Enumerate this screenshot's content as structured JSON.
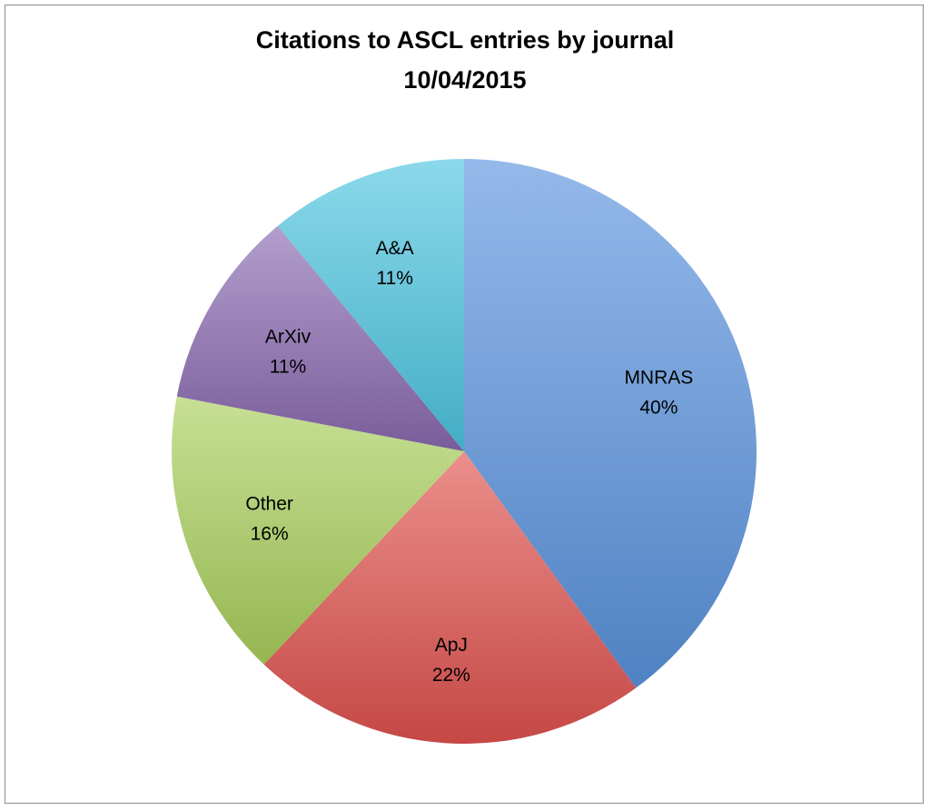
{
  "chart_data": {
    "type": "pie",
    "title": "Citations to ASCL entries by journal",
    "subtitle": "10/04/2015",
    "slices": [
      {
        "name": "MNRAS",
        "value": 40,
        "label": "40%",
        "color": "#5a94de"
      },
      {
        "name": "ApJ",
        "value": 22,
        "label": "22%",
        "color": "#e0524e"
      },
      {
        "name": "Other",
        "value": 16,
        "label": "16%",
        "color": "#a9cf5c"
      },
      {
        "name": "ArXiv",
        "value": 11,
        "label": "11%",
        "color": "#8a6ab0"
      },
      {
        "name": "A&A",
        "value": 11,
        "label": "11%",
        "color": "#4cc5e0"
      }
    ],
    "legend": "none",
    "start": "12 o'clock",
    "direction": "clockwise"
  }
}
